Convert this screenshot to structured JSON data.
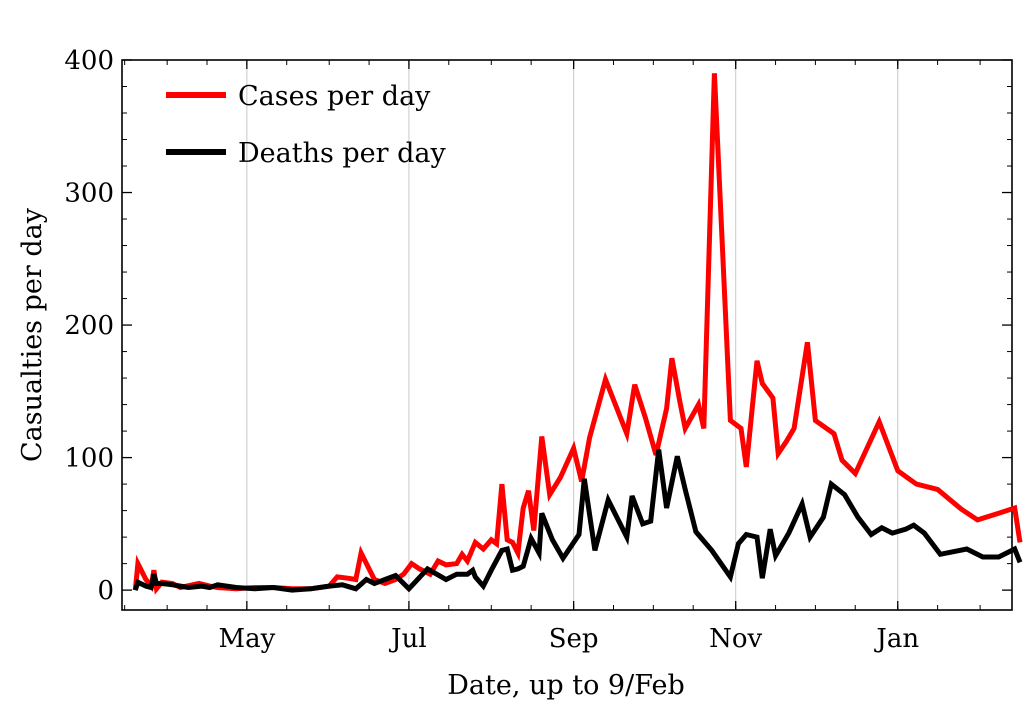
{
  "chart_data": {
    "type": "line",
    "xlabel": "Date, up to 9/Feb",
    "ylabel": "Casualties per day",
    "ylim": [
      -15,
      400
    ],
    "xlim": [
      "2020-03-15",
      "2021-02-13"
    ],
    "grid": {
      "vertical": true,
      "horizontal": false
    },
    "legend_position": "top-left",
    "y_ticks": [
      {
        "value": 0,
        "label": "0"
      },
      {
        "value": 100,
        "label": "100"
      },
      {
        "value": 200,
        "label": "200"
      },
      {
        "value": 300,
        "label": "300"
      },
      {
        "value": 400,
        "label": "400"
      }
    ],
    "x_ticks": [
      {
        "value": "2020-05-01",
        "label": "May"
      },
      {
        "value": "2020-07-01",
        "label": "Jul"
      },
      {
        "value": "2020-09-01",
        "label": "Sep"
      },
      {
        "value": "2020-11-01",
        "label": "Nov"
      },
      {
        "value": "2021-01-01",
        "label": "Jan"
      }
    ],
    "series": [
      {
        "name": "Cases per day",
        "color": "#ff0000",
        "points": [
          [
            "2020-03-20",
            0
          ],
          [
            "2020-03-21",
            20
          ],
          [
            "2020-03-24",
            8
          ],
          [
            "2020-03-26",
            3
          ],
          [
            "2020-03-27",
            15
          ],
          [
            "2020-03-28",
            1
          ],
          [
            "2020-03-30",
            6
          ],
          [
            "2020-04-03",
            5
          ],
          [
            "2020-04-06",
            2
          ],
          [
            "2020-04-13",
            5
          ],
          [
            "2020-04-17",
            3
          ],
          [
            "2020-04-20",
            2
          ],
          [
            "2020-04-27",
            1
          ],
          [
            "2020-05-04",
            2
          ],
          [
            "2020-05-11",
            2
          ],
          [
            "2020-05-18",
            1
          ],
          [
            "2020-05-25",
            1
          ],
          [
            "2020-06-01",
            3
          ],
          [
            "2020-06-04",
            10
          ],
          [
            "2020-06-08",
            9
          ],
          [
            "2020-06-11",
            8
          ],
          [
            "2020-06-13",
            28
          ],
          [
            "2020-06-18",
            8
          ],
          [
            "2020-06-22",
            5
          ],
          [
            "2020-06-26",
            8
          ],
          [
            "2020-06-29",
            12
          ],
          [
            "2020-07-02",
            20
          ],
          [
            "2020-07-05",
            16
          ],
          [
            "2020-07-09",
            12
          ],
          [
            "2020-07-12",
            22
          ],
          [
            "2020-07-15",
            19
          ],
          [
            "2020-07-19",
            20
          ],
          [
            "2020-07-21",
            27
          ],
          [
            "2020-07-23",
            22
          ],
          [
            "2020-07-26",
            36
          ],
          [
            "2020-07-29",
            31
          ],
          [
            "2020-08-01",
            38
          ],
          [
            "2020-08-03",
            35
          ],
          [
            "2020-08-05",
            80
          ],
          [
            "2020-08-07",
            38
          ],
          [
            "2020-08-09",
            36
          ],
          [
            "2020-08-11",
            28
          ],
          [
            "2020-08-13",
            62
          ],
          [
            "2020-08-15",
            75
          ],
          [
            "2020-08-17",
            45
          ],
          [
            "2020-08-20",
            116
          ],
          [
            "2020-08-23",
            72
          ],
          [
            "2020-08-27",
            85
          ],
          [
            "2020-09-01",
            107
          ],
          [
            "2020-09-04",
            82
          ],
          [
            "2020-09-07",
            115
          ],
          [
            "2020-09-13",
            159
          ],
          [
            "2020-09-21",
            118
          ],
          [
            "2020-09-24",
            155
          ],
          [
            "2020-09-28",
            130
          ],
          [
            "2020-10-02",
            102
          ],
          [
            "2020-10-06",
            137
          ],
          [
            "2020-10-08",
            175
          ],
          [
            "2020-10-11",
            142
          ],
          [
            "2020-10-13",
            122
          ],
          [
            "2020-10-18",
            140
          ],
          [
            "2020-10-20",
            122
          ],
          [
            "2020-10-24",
            390
          ],
          [
            "2020-10-30",
            128
          ],
          [
            "2020-11-03",
            122
          ],
          [
            "2020-11-05",
            93
          ],
          [
            "2020-11-09",
            173
          ],
          [
            "2020-11-11",
            156
          ],
          [
            "2020-11-15",
            145
          ],
          [
            "2020-11-17",
            103
          ],
          [
            "2020-11-20",
            112
          ],
          [
            "2020-11-23",
            122
          ],
          [
            "2020-11-28",
            187
          ],
          [
            "2020-12-01",
            128
          ],
          [
            "2020-12-08",
            118
          ],
          [
            "2020-12-11",
            98
          ],
          [
            "2020-12-16",
            88
          ],
          [
            "2020-12-25",
            127
          ],
          [
            "2021-01-01",
            90
          ],
          [
            "2021-01-08",
            80
          ],
          [
            "2021-01-16",
            76
          ],
          [
            "2021-01-25",
            61
          ],
          [
            "2021-01-31",
            53
          ],
          [
            "2021-02-08",
            58
          ],
          [
            "2021-02-14",
            62
          ],
          [
            "2021-02-16",
            36
          ]
        ]
      },
      {
        "name": "Deaths per day",
        "color": "#000000",
        "points": [
          [
            "2020-03-20",
            0
          ],
          [
            "2020-03-21",
            6
          ],
          [
            "2020-03-24",
            3
          ],
          [
            "2020-03-26",
            2
          ],
          [
            "2020-03-27",
            12
          ],
          [
            "2020-03-28",
            5
          ],
          [
            "2020-03-30",
            5
          ],
          [
            "2020-04-03",
            4
          ],
          [
            "2020-04-06",
            3
          ],
          [
            "2020-04-09",
            2
          ],
          [
            "2020-04-14",
            3
          ],
          [
            "2020-04-17",
            2
          ],
          [
            "2020-04-20",
            4
          ],
          [
            "2020-04-27",
            2
          ],
          [
            "2020-05-04",
            1
          ],
          [
            "2020-05-11",
            2
          ],
          [
            "2020-05-18",
            0
          ],
          [
            "2020-05-25",
            1
          ],
          [
            "2020-06-01",
            3
          ],
          [
            "2020-06-06",
            4
          ],
          [
            "2020-06-11",
            1
          ],
          [
            "2020-06-15",
            8
          ],
          [
            "2020-06-18",
            5
          ],
          [
            "2020-06-22",
            8
          ],
          [
            "2020-06-26",
            11
          ],
          [
            "2020-07-01",
            1
          ],
          [
            "2020-07-08",
            16
          ],
          [
            "2020-07-15",
            8
          ],
          [
            "2020-07-19",
            12
          ],
          [
            "2020-07-23",
            12
          ],
          [
            "2020-07-25",
            15
          ],
          [
            "2020-07-26",
            10
          ],
          [
            "2020-07-29",
            3
          ],
          [
            "2020-08-01",
            15
          ],
          [
            "2020-08-05",
            30
          ],
          [
            "2020-08-07",
            31
          ],
          [
            "2020-08-09",
            15
          ],
          [
            "2020-08-11",
            16
          ],
          [
            "2020-08-13",
            18
          ],
          [
            "2020-08-16",
            39
          ],
          [
            "2020-08-19",
            28
          ],
          [
            "2020-08-20",
            58
          ],
          [
            "2020-08-24",
            38
          ],
          [
            "2020-08-28",
            24
          ],
          [
            "2020-09-03",
            42
          ],
          [
            "2020-09-05",
            84
          ],
          [
            "2020-09-09",
            30
          ],
          [
            "2020-09-14",
            68
          ],
          [
            "2020-09-21",
            40
          ],
          [
            "2020-09-23",
            71
          ],
          [
            "2020-09-27",
            50
          ],
          [
            "2020-09-30",
            52
          ],
          [
            "2020-10-03",
            106
          ],
          [
            "2020-10-06",
            62
          ],
          [
            "2020-10-10",
            101
          ],
          [
            "2020-10-13",
            76
          ],
          [
            "2020-10-17",
            44
          ],
          [
            "2020-10-23",
            30
          ],
          [
            "2020-10-30",
            10
          ],
          [
            "2020-11-02",
            35
          ],
          [
            "2020-11-05",
            42
          ],
          [
            "2020-11-09",
            40
          ],
          [
            "2020-11-11",
            9
          ],
          [
            "2020-11-14",
            46
          ],
          [
            "2020-11-16",
            26
          ],
          [
            "2020-11-21",
            43
          ],
          [
            "2020-11-26",
            65
          ],
          [
            "2020-11-29",
            40
          ],
          [
            "2020-12-04",
            55
          ],
          [
            "2020-12-07",
            80
          ],
          [
            "2020-12-12",
            72
          ],
          [
            "2020-12-17",
            55
          ],
          [
            "2020-12-22",
            42
          ],
          [
            "2020-12-26",
            47
          ],
          [
            "2020-12-30",
            43
          ],
          [
            "2021-01-04",
            46
          ],
          [
            "2021-01-07",
            49
          ],
          [
            "2021-01-11",
            43
          ],
          [
            "2021-01-17",
            27
          ],
          [
            "2021-01-27",
            31
          ],
          [
            "2021-02-02",
            25
          ],
          [
            "2021-02-08",
            25
          ],
          [
            "2021-02-14",
            31
          ],
          [
            "2021-02-16",
            21
          ]
        ]
      }
    ]
  }
}
